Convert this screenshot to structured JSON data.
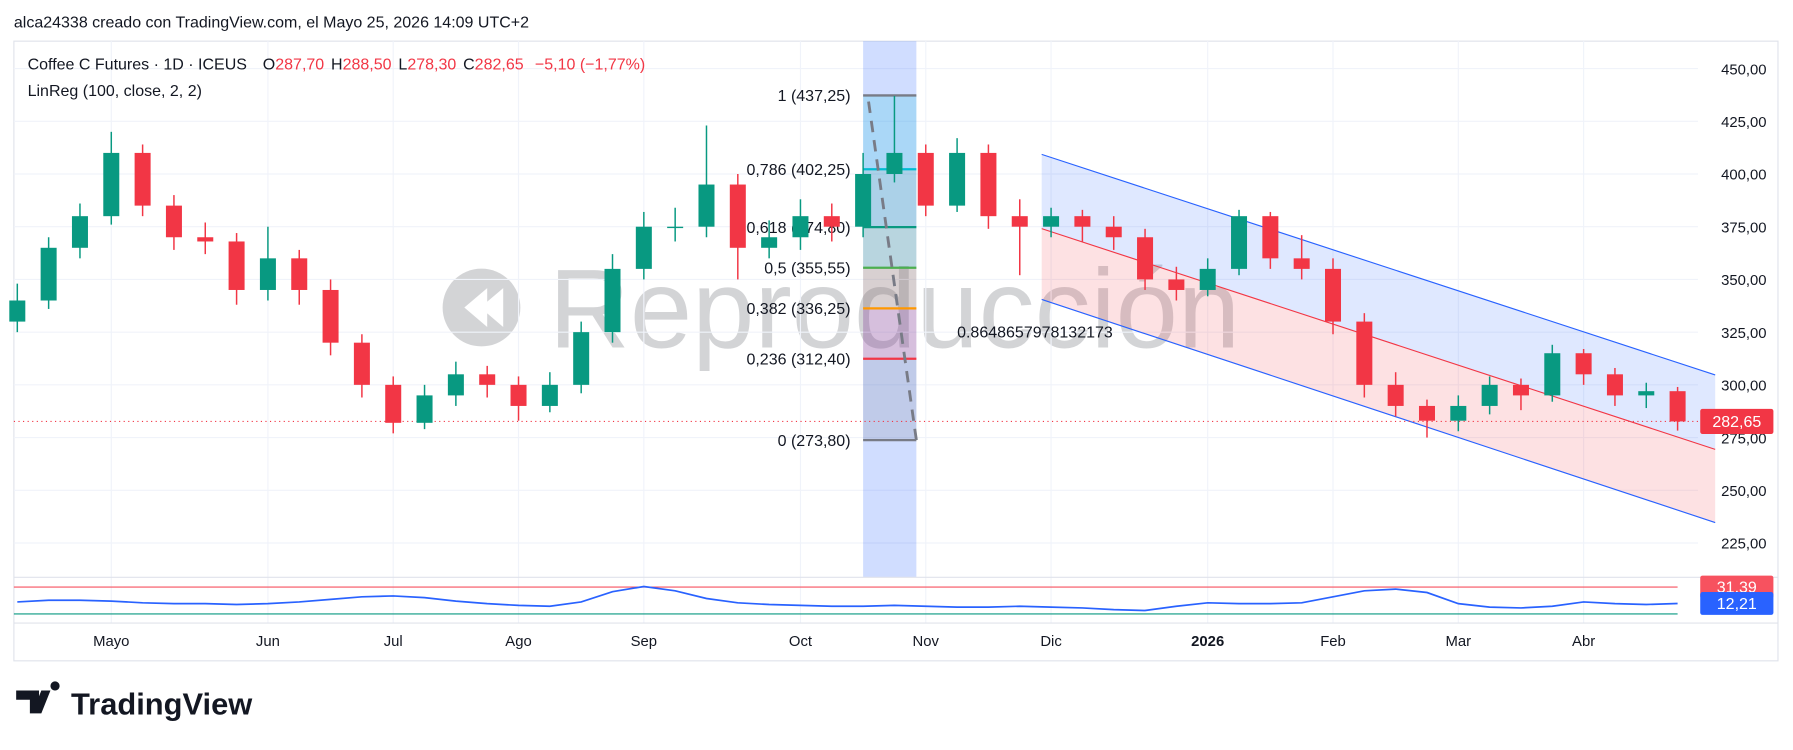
{
  "header": {
    "author_line": "alca24338 creado con TradingView.com, el Mayo 25, 2026 14:09 UTC+2",
    "symbol": "Coffee C Futures · 1D · ICEUS",
    "ohlc": [
      {
        "key": "O",
        "value": "287,70"
      },
      {
        "key": "H",
        "value": "288,50"
      },
      {
        "key": "L",
        "value": "278,30"
      },
      {
        "key": "C",
        "value": "282,65"
      }
    ],
    "change": "−5,10 (−1,77%)",
    "indicator": "LinReg (100, close, 2, 2)"
  },
  "watermark": "Reproducción",
  "logo": "TradingView",
  "chart_data": {
    "type": "candlestick",
    "categories": [
      null,
      null,
      null,
      "Mayo",
      null,
      null,
      null,
      null,
      "Jun",
      null,
      null,
      null,
      "Jul",
      null,
      null,
      null,
      "Ago",
      null,
      null,
      null,
      "Sep",
      null,
      null,
      null,
      null,
      "Oct",
      null,
      null,
      null,
      "Nov",
      null,
      null,
      null,
      "Dic",
      null,
      null,
      null,
      null,
      "2026",
      null,
      null,
      null,
      "Feb",
      null,
      null,
      null,
      "Mar",
      null,
      null,
      null,
      "Abr",
      null,
      null,
      null
    ],
    "bold_category": 38,
    "open": [
      330,
      340,
      365,
      380,
      410,
      385,
      370,
      368,
      345,
      360,
      345,
      320,
      300,
      282,
      295,
      305,
      300,
      290,
      300,
      325,
      355,
      375,
      375,
      395,
      365,
      370,
      380,
      375,
      400,
      410,
      385,
      410,
      380,
      375,
      380,
      375,
      370,
      350,
      345,
      355,
      380,
      360,
      355,
      330,
      300,
      290,
      283,
      290,
      300,
      295,
      315,
      305,
      295,
      297
    ],
    "high": [
      348,
      370,
      386,
      420,
      414,
      390,
      377,
      372,
      375,
      364,
      350,
      324,
      304,
      300,
      311,
      309,
      304,
      306,
      330,
      362,
      382,
      384,
      423,
      400,
      378,
      388,
      386,
      410,
      437,
      414,
      417,
      414,
      388,
      384,
      383,
      380,
      374,
      356,
      360,
      383,
      382,
      371,
      360,
      334,
      306,
      293,
      295,
      304,
      303,
      319,
      317,
      308,
      301,
      299
    ],
    "low": [
      325,
      336,
      360,
      376,
      380,
      364,
      362,
      338,
      340,
      338,
      314,
      294,
      277,
      279,
      290,
      294,
      283,
      287,
      296,
      320,
      350,
      368,
      370,
      350,
      360,
      364,
      368,
      370,
      396,
      380,
      382,
      374,
      352,
      370,
      368,
      364,
      345,
      340,
      342,
      352,
      355,
      350,
      324,
      294,
      285,
      275,
      278,
      286,
      288,
      292,
      300,
      290,
      289,
      278.3
    ],
    "close": [
      340,
      365,
      380,
      410,
      385,
      370,
      368,
      345,
      360,
      345,
      320,
      300,
      282,
      295,
      305,
      300,
      290,
      300,
      325,
      355,
      375,
      375,
      395,
      365,
      370,
      380,
      375,
      400,
      410,
      385,
      410,
      380,
      375,
      380,
      375,
      370,
      350,
      345,
      355,
      380,
      360,
      355,
      330,
      300,
      290,
      283,
      290,
      300,
      295,
      315,
      305,
      295,
      297,
      282.65
    ],
    "up_color": "#089981",
    "down_color": "#f23645",
    "ylim": [
      208.7,
      463
    ],
    "yticks": [
      {
        "value": 225,
        "label": "225,00"
      },
      {
        "value": 250,
        "label": "250,00"
      },
      {
        "value": 275,
        "label": "275,00"
      },
      {
        "value": 300,
        "label": "300,00"
      },
      {
        "value": 325,
        "label": "325,00"
      },
      {
        "value": 350,
        "label": "350,00"
      },
      {
        "value": 375,
        "label": "375,00"
      },
      {
        "value": 400,
        "label": "400,00"
      },
      {
        "value": 425,
        "label": "425,00"
      },
      {
        "value": 450,
        "label": "450,00"
      }
    ],
    "grid": true,
    "last_price": {
      "value": 282.65,
      "label": "282,65",
      "color": "#f23645"
    },
    "fib": {
      "x": [
        27,
        28.7
      ],
      "levels": [
        {
          "text": "1 (437,25)",
          "price": 437.25,
          "color": "#787b86"
        },
        {
          "text": "0,786 (402,25)",
          "price": 402.25,
          "color": "#00bcd4"
        },
        {
          "text": "0,618 (374,80)",
          "price": 374.8,
          "color": "#089981"
        },
        {
          "text": "0,5 (355,55)",
          "price": 355.55,
          "color": "#4caf50"
        },
        {
          "text": "0,382 (336,25)",
          "price": 336.25,
          "color": "#ff9800"
        },
        {
          "text": "0,236 (312,40)",
          "price": 312.4,
          "color": "#f23645"
        },
        {
          "text": "0 (273,80)",
          "price": 273.8,
          "color": "#787b86"
        }
      ]
    },
    "channel": {
      "x": [
        32.7,
        54.2
      ],
      "upper": [
        409.3,
        304.7
      ],
      "middle": [
        374.1,
        269.4
      ],
      "lower": [
        340.5,
        234.7
      ],
      "pearson": 0.8648657978132173,
      "line_color": "#2962ff",
      "mid_color": "#f23645"
    },
    "indicator": {
      "ylim": [
        -4,
        40
      ],
      "color": "#2962ff",
      "values": [
        14,
        16,
        16,
        15,
        13,
        12,
        12,
        11,
        12,
        14,
        17,
        20,
        21,
        19,
        15,
        12,
        10,
        9,
        14,
        26,
        32,
        27,
        18,
        13,
        11,
        10,
        9,
        9,
        10,
        9,
        8,
        8,
        9,
        8,
        7,
        5,
        4,
        9,
        13,
        12,
        12,
        13,
        20,
        27,
        29,
        25,
        12,
        8,
        7,
        9,
        14,
        12,
        11,
        12.21
      ],
      "value_label": "12,21",
      "upper": 31.39,
      "upper_label": "31,39",
      "upper_color": "#f7525f",
      "lower": 0,
      "lower_color": "#089981"
    }
  }
}
